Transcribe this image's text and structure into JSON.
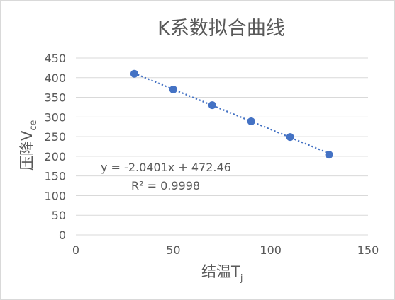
{
  "chart_data": {
    "type": "scatter",
    "title": "K系数拟合曲线",
    "xlabel_main": "结温T",
    "xlabel_sub": "j",
    "ylabel_main": "压降V",
    "ylabel_sub": "ce",
    "xlim": [
      0,
      150
    ],
    "ylim": [
      0,
      450
    ],
    "xticks": [
      0,
      50,
      100,
      150
    ],
    "yticks": [
      0,
      50,
      100,
      150,
      200,
      250,
      300,
      350,
      400,
      450
    ],
    "grid": "horizontal",
    "series": [
      {
        "x": [
          30,
          50,
          70,
          90,
          110,
          130
        ],
        "y": [
          410,
          370,
          330,
          289,
          249,
          204
        ],
        "color": "#4472c4"
      }
    ],
    "trendline": {
      "type": "linear",
      "slope": -2.0401,
      "intercept": 472.46,
      "color": "#4472c4"
    },
    "equation_label": "y = -2.0401x + 472.46",
    "r2_label": "R² = 0.9998"
  }
}
